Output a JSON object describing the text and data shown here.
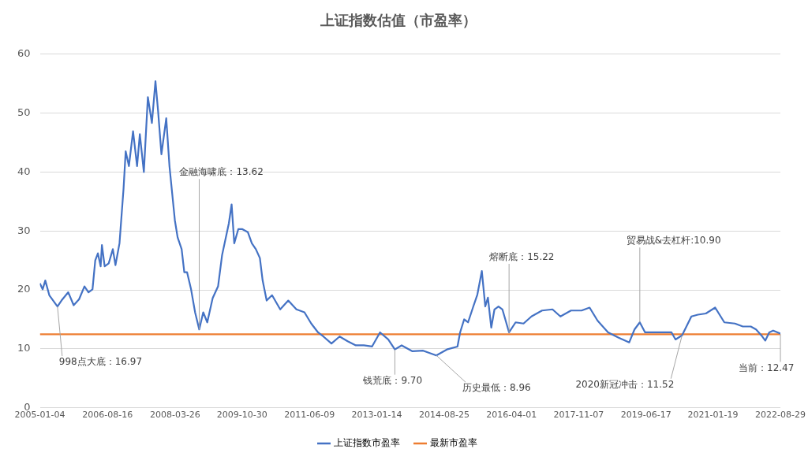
{
  "chart_data": {
    "type": "line",
    "title": "上证指数估值（市盈率）",
    "series": [
      {
        "name": "上证指数市盈率",
        "color": "#4472c4",
        "x": [
          "2005-01-04",
          "2005-01-28",
          "2005-02-20",
          "2005-03-27",
          "2005-06-06",
          "2005-07-11",
          "2005-09-08",
          "2005-10-25",
          "2005-12-11",
          "2006-01-27",
          "2006-03-03",
          "2006-04-07",
          "2006-05-01",
          "2006-05-24",
          "2006-06-17",
          "2006-06-28",
          "2006-07-22",
          "2006-08-26",
          "2006-10-01",
          "2006-10-24",
          "2006-11-28",
          "2007-01-02",
          "2007-01-21",
          "2007-02-18",
          "2007-03-26",
          "2007-04-30",
          "2007-05-24",
          "2007-06-28",
          "2007-08-02",
          "2007-09-06",
          "2007-10-07",
          "2007-10-30",
          "2007-11-28",
          "2008-01-09",
          "2008-02-06",
          "2008-03-24",
          "2008-04-17",
          "2008-05-22",
          "2008-06-14",
          "2008-07-08",
          "2008-08-12",
          "2008-09-16",
          "2008-10-22",
          "2008-11-26",
          "2008-12-31",
          "2009-02-16",
          "2009-04-04",
          "2009-05-09",
          "2009-07-07",
          "2009-07-31",
          "2009-08-23",
          "2009-09-27",
          "2009-11-02",
          "2009-12-19",
          "2010-01-23",
          "2010-02-27",
          "2010-04-03",
          "2010-04-27",
          "2010-06-01",
          "2010-07-18",
          "2010-09-27",
          "2010-12-06",
          "2011-02-15",
          "2011-04-26",
          "2011-06-24",
          "2011-08-22",
          "2011-10-08",
          "2011-12-17",
          "2012-02-26",
          "2012-05-06",
          "2012-07-16",
          "2012-09-24",
          "2012-12-04",
          "2013-02-12",
          "2013-04-24",
          "2013-06-21",
          "2013-08-19",
          "2013-11-21",
          "2014-02-22",
          "2014-06-17",
          "2014-09-17",
          "2014-12-18",
          "2015-01-10",
          "2015-02-14",
          "2015-03-20",
          "2015-05-05",
          "2015-06-09",
          "2015-07-18",
          "2015-08-17",
          "2015-09-09",
          "2015-10-08",
          "2015-11-05",
          "2015-12-10",
          "2016-01-13",
          "2016-03-11",
          "2016-05-07",
          "2016-07-15",
          "2016-09-22",
          "2016-12-23",
          "2017-03-24",
          "2017-06-01",
          "2017-09-01",
          "2017-12-02",
          "2018-02-10",
          "2018-04-20",
          "2018-07-21",
          "2018-10-21",
          "2019-01-21",
          "2019-03-08",
          "2019-04-23",
          "2019-06-08",
          "2019-10-01",
          "2020-01-24",
          "2020-02-28",
          "2020-04-25",
          "2020-07-15",
          "2020-09-10",
          "2020-11-18",
          "2021-02-07",
          "2021-04-28",
          "2021-07-29",
          "2021-10-06",
          "2021-12-14",
          "2022-01-29",
          "2022-03-16",
          "2022-04-19",
          "2022-05-24",
          "2022-06-27",
          "2022-08-29"
        ],
        "values": [
          21.1,
          20.1,
          21.6,
          19.1,
          17.2,
          18.2,
          19.6,
          17.4,
          18.4,
          20.6,
          19.6,
          20.1,
          25.0,
          26.2,
          24.0,
          27.6,
          24.0,
          24.5,
          26.9,
          24.2,
          27.9,
          37.1,
          43.5,
          41.0,
          46.9,
          41.0,
          46.4,
          40.0,
          52.7,
          48.3,
          55.4,
          50.3,
          43.0,
          49.1,
          41.0,
          31.8,
          28.9,
          26.9,
          23.0,
          23.0,
          20.1,
          16.2,
          13.3,
          16.2,
          14.5,
          18.6,
          20.6,
          25.9,
          31.3,
          34.5,
          27.9,
          30.3,
          30.3,
          29.8,
          27.9,
          26.9,
          25.4,
          21.6,
          18.2,
          19.1,
          16.7,
          18.2,
          16.7,
          16.2,
          14.3,
          12.8,
          12.1,
          10.9,
          12.1,
          11.3,
          10.6,
          10.6,
          10.4,
          12.8,
          11.6,
          9.9,
          10.6,
          9.6,
          9.7,
          8.9,
          9.9,
          10.4,
          12.8,
          15.0,
          14.5,
          17.2,
          19.2,
          23.2,
          17.2,
          18.7,
          13.6,
          16.7,
          17.2,
          16.7,
          12.8,
          14.5,
          14.3,
          15.5,
          16.5,
          16.7,
          15.5,
          16.5,
          16.5,
          17.0,
          14.8,
          12.8,
          11.9,
          11.1,
          13.3,
          14.5,
          12.8,
          12.8,
          12.8,
          11.6,
          12.3,
          15.5,
          15.8,
          16.0,
          17.0,
          14.5,
          14.3,
          13.8,
          13.8,
          13.3,
          12.3,
          11.4,
          12.8,
          13.1,
          12.6
        ]
      },
      {
        "name": "最新市盈率",
        "color": "#ed7d31",
        "x": [
          "2005-01-04",
          "2022-08-29"
        ],
        "values": [
          12.47,
          12.47
        ]
      }
    ],
    "xlim": [
      "2005-01-04",
      "2022-08-29"
    ],
    "xticks": [
      "2005-01-04",
      "2006-08-16",
      "2008-03-26",
      "2009-10-30",
      "2011-06-09",
      "2013-01-14",
      "2014-08-25",
      "2016-04-01",
      "2017-11-07",
      "2019-06-17",
      "2021-01-19",
      "2022-08-29"
    ],
    "ylim": [
      0,
      60
    ],
    "yticks": [
      0,
      10,
      20,
      30,
      40,
      50,
      60
    ],
    "grid": "y",
    "legend": "bottom",
    "marker": "none",
    "line_style": "solid",
    "annotations": [
      {
        "text": "998点大底：16.97",
        "x": "2005-06-06",
        "y": 17.2
      },
      {
        "text": "金融海啸底：13.62",
        "x": "2008-10-22",
        "y": 13.3
      },
      {
        "text": "钱荒底：9.70",
        "x": "2013-06-21",
        "y": 9.9
      },
      {
        "text": "历史最低：8.96",
        "x": "2014-06-17",
        "y": 8.9
      },
      {
        "text": "熔断底：15.22",
        "x": "2016-03-11",
        "y": 12.8
      },
      {
        "text": "贸易战&去杠杆:10.90",
        "x": "2019-04-23",
        "y": 14.5
      },
      {
        "text": "2020新冠冲击：11.52",
        "x": "2020-04-25",
        "y": 12.3
      },
      {
        "text": "当前：12.47",
        "x": "2022-08-29",
        "y": 12.47
      }
    ]
  }
}
